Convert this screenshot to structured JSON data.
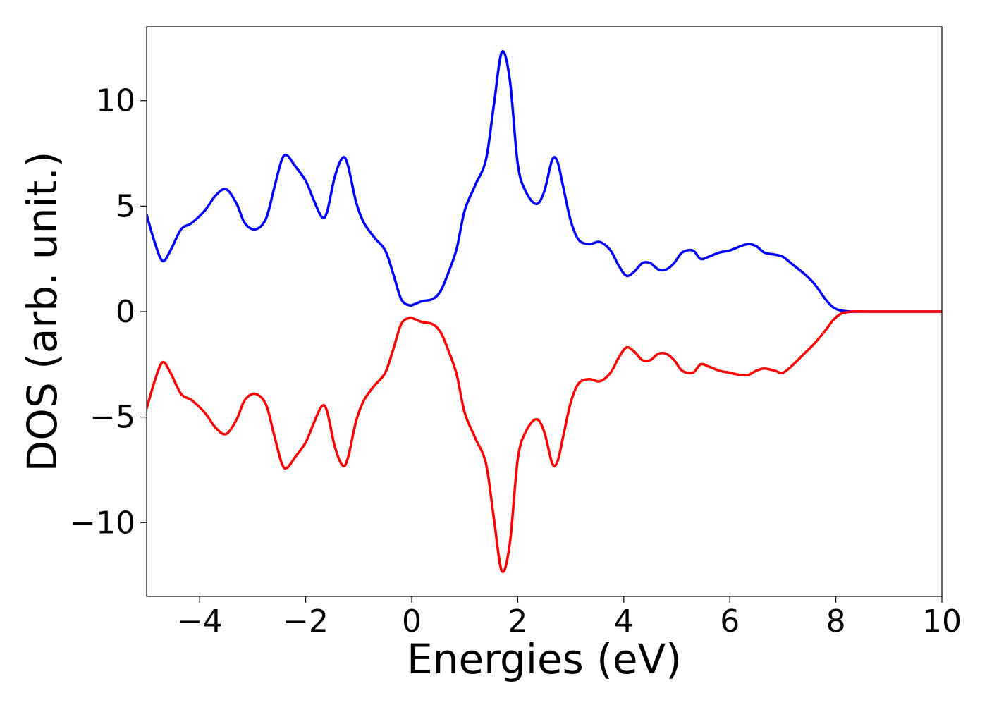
{
  "chart_data": {
    "type": "line",
    "title": "",
    "xlabel": "Energies (eV)",
    "ylabel": "DOS (arb. unit.)",
    "xlim": [
      -5,
      10
    ],
    "ylim": [
      -13.5,
      13.5
    ],
    "grid": false,
    "legend": "none",
    "xticks": [
      -4,
      -2,
      0,
      2,
      4,
      6,
      8,
      10
    ],
    "xtick_labels": [
      "−4",
      "−2",
      "0",
      "2",
      "4",
      "6",
      "8",
      "10"
    ],
    "yticks": [
      -10,
      -5,
      0,
      5,
      10
    ],
    "ytick_labels": [
      "−10",
      "−5",
      "0",
      "5",
      "10"
    ],
    "series": [
      {
        "color": "#0000ff",
        "x": [
          -5.0,
          -4.85,
          -4.7,
          -4.55,
          -4.35,
          -4.15,
          -3.9,
          -3.7,
          -3.5,
          -3.3,
          -3.15,
          -2.95,
          -2.75,
          -2.6,
          -2.45,
          -2.35,
          -2.2,
          -2.0,
          -1.85,
          -1.7,
          -1.6,
          -1.45,
          -1.3,
          -1.2,
          -1.05,
          -0.9,
          -0.7,
          -0.5,
          -0.35,
          -0.2,
          -0.05,
          0.05,
          0.2,
          0.4,
          0.55,
          0.7,
          0.85,
          1.0,
          1.2,
          1.4,
          1.55,
          1.7,
          1.85,
          2.0,
          2.15,
          2.35,
          2.5,
          2.65,
          2.75,
          2.85,
          3.0,
          3.15,
          3.35,
          3.55,
          3.75,
          3.9,
          4.05,
          4.2,
          4.35,
          4.5,
          4.65,
          4.8,
          4.95,
          5.1,
          5.3,
          5.45,
          5.6,
          5.8,
          6.0,
          6.2,
          6.35,
          6.5,
          6.65,
          6.85,
          7.0,
          7.2,
          7.4,
          7.6,
          7.8,
          7.95,
          8.1,
          8.3,
          8.6,
          9.0,
          9.5,
          10.0
        ],
        "y": [
          4.6,
          3.3,
          2.4,
          2.9,
          3.9,
          4.2,
          4.8,
          5.5,
          5.8,
          5.1,
          4.2,
          3.9,
          4.4,
          5.8,
          7.2,
          7.4,
          6.9,
          6.2,
          5.3,
          4.5,
          4.7,
          6.4,
          7.3,
          6.9,
          5.2,
          4.2,
          3.5,
          2.9,
          1.8,
          0.6,
          0.3,
          0.35,
          0.5,
          0.6,
          1.0,
          1.9,
          3.0,
          4.8,
          6.0,
          7.2,
          9.8,
          12.3,
          11.0,
          7.0,
          5.7,
          5.1,
          5.7,
          7.2,
          7.1,
          6.0,
          4.3,
          3.4,
          3.2,
          3.3,
          2.9,
          2.2,
          1.7,
          1.9,
          2.3,
          2.3,
          2.0,
          2.0,
          2.3,
          2.8,
          2.9,
          2.5,
          2.6,
          2.8,
          2.9,
          3.1,
          3.2,
          3.1,
          2.8,
          2.7,
          2.6,
          2.2,
          1.8,
          1.3,
          0.6,
          0.2,
          0.05,
          0.0,
          0.0,
          0.0,
          0.0,
          0.0
        ]
      },
      {
        "color": "#ff0000",
        "x": [
          -5.0,
          -4.85,
          -4.7,
          -4.55,
          -4.35,
          -4.15,
          -3.9,
          -3.7,
          -3.5,
          -3.3,
          -3.15,
          -2.95,
          -2.75,
          -2.6,
          -2.45,
          -2.35,
          -2.2,
          -2.0,
          -1.85,
          -1.7,
          -1.6,
          -1.45,
          -1.3,
          -1.2,
          -1.05,
          -0.9,
          -0.7,
          -0.5,
          -0.35,
          -0.2,
          -0.05,
          0.05,
          0.2,
          0.4,
          0.55,
          0.7,
          0.85,
          1.0,
          1.2,
          1.4,
          1.55,
          1.7,
          1.85,
          2.0,
          2.15,
          2.35,
          2.5,
          2.65,
          2.75,
          2.85,
          3.0,
          3.15,
          3.35,
          3.55,
          3.75,
          3.9,
          4.05,
          4.2,
          4.35,
          4.5,
          4.65,
          4.8,
          4.95,
          5.1,
          5.3,
          5.45,
          5.6,
          5.8,
          6.0,
          6.2,
          6.35,
          6.5,
          6.65,
          6.85,
          7.0,
          7.2,
          7.4,
          7.6,
          7.8,
          7.95,
          8.1,
          8.3,
          8.6,
          9.0,
          9.5,
          10.0
        ],
        "y": [
          -4.6,
          -3.3,
          -2.4,
          -2.9,
          -3.9,
          -4.2,
          -4.8,
          -5.5,
          -5.8,
          -5.1,
          -4.2,
          -3.9,
          -4.4,
          -5.8,
          -7.2,
          -7.4,
          -6.9,
          -6.2,
          -5.3,
          -4.5,
          -4.7,
          -6.4,
          -7.3,
          -6.9,
          -5.2,
          -4.2,
          -3.5,
          -2.9,
          -1.8,
          -0.6,
          -0.3,
          -0.35,
          -0.5,
          -0.6,
          -1.0,
          -1.9,
          -3.0,
          -4.8,
          -6.0,
          -7.2,
          -9.8,
          -12.3,
          -11.0,
          -7.0,
          -5.7,
          -5.1,
          -5.7,
          -7.2,
          -7.1,
          -6.0,
          -4.3,
          -3.4,
          -3.2,
          -3.3,
          -2.9,
          -2.2,
          -1.7,
          -1.9,
          -2.3,
          -2.3,
          -2.0,
          -2.0,
          -2.3,
          -2.8,
          -2.9,
          -2.5,
          -2.6,
          -2.8,
          -2.9,
          -3.0,
          -3.0,
          -2.8,
          -2.7,
          -2.8,
          -2.9,
          -2.5,
          -2.0,
          -1.5,
          -0.9,
          -0.4,
          -0.1,
          0.0,
          0.0,
          0.0,
          0.0,
          0.0
        ]
      }
    ]
  }
}
